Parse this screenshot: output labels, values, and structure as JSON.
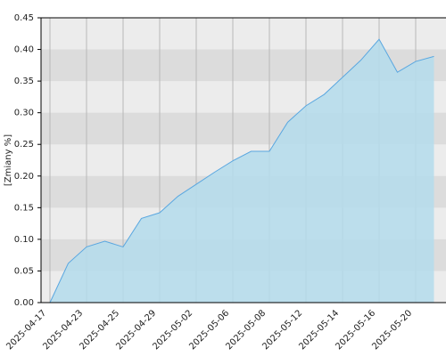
{
  "chart_data": {
    "type": "area",
    "y_label": "[Zmiany %]",
    "categories": [
      "2025-04-17",
      null,
      "2025-04-23",
      null,
      "2025-04-25",
      null,
      "2025-04-29",
      null,
      "2025-05-02",
      null,
      "2025-05-06",
      null,
      "2025-05-08",
      null,
      "2025-05-12",
      null,
      "2025-05-14",
      null,
      "2025-05-16",
      null,
      "2025-05-20",
      null
    ],
    "values": [
      0,
      0.062,
      0.088,
      0.097,
      0.088,
      0.133,
      0.142,
      0.168,
      0.187,
      0.206,
      0.224,
      0.239,
      0.239,
      0.285,
      0.311,
      0.329,
      0.356,
      0.383,
      0.416,
      0.364,
      0.381,
      0.389
    ],
    "color": "#5aa7e0",
    "fill": "#b4dcec",
    "ylim": [
      0,
      0.45
    ],
    "yticks": [
      {
        "value": 0,
        "label": "0.00"
      },
      {
        "value": 0.05,
        "label": "0.05"
      },
      {
        "value": 0.1,
        "label": "0.10"
      },
      {
        "value": 0.15,
        "label": "0.15"
      },
      {
        "value": 0.2,
        "label": "0.20"
      },
      {
        "value": 0.25,
        "label": "0.25"
      },
      {
        "value": 0.3,
        "label": "0.30"
      },
      {
        "value": 0.35,
        "label": "0.35"
      },
      {
        "value": 0.4,
        "label": "0.40"
      },
      {
        "value": 0.45,
        "label": "0.45"
      }
    ],
    "grid": true
  }
}
